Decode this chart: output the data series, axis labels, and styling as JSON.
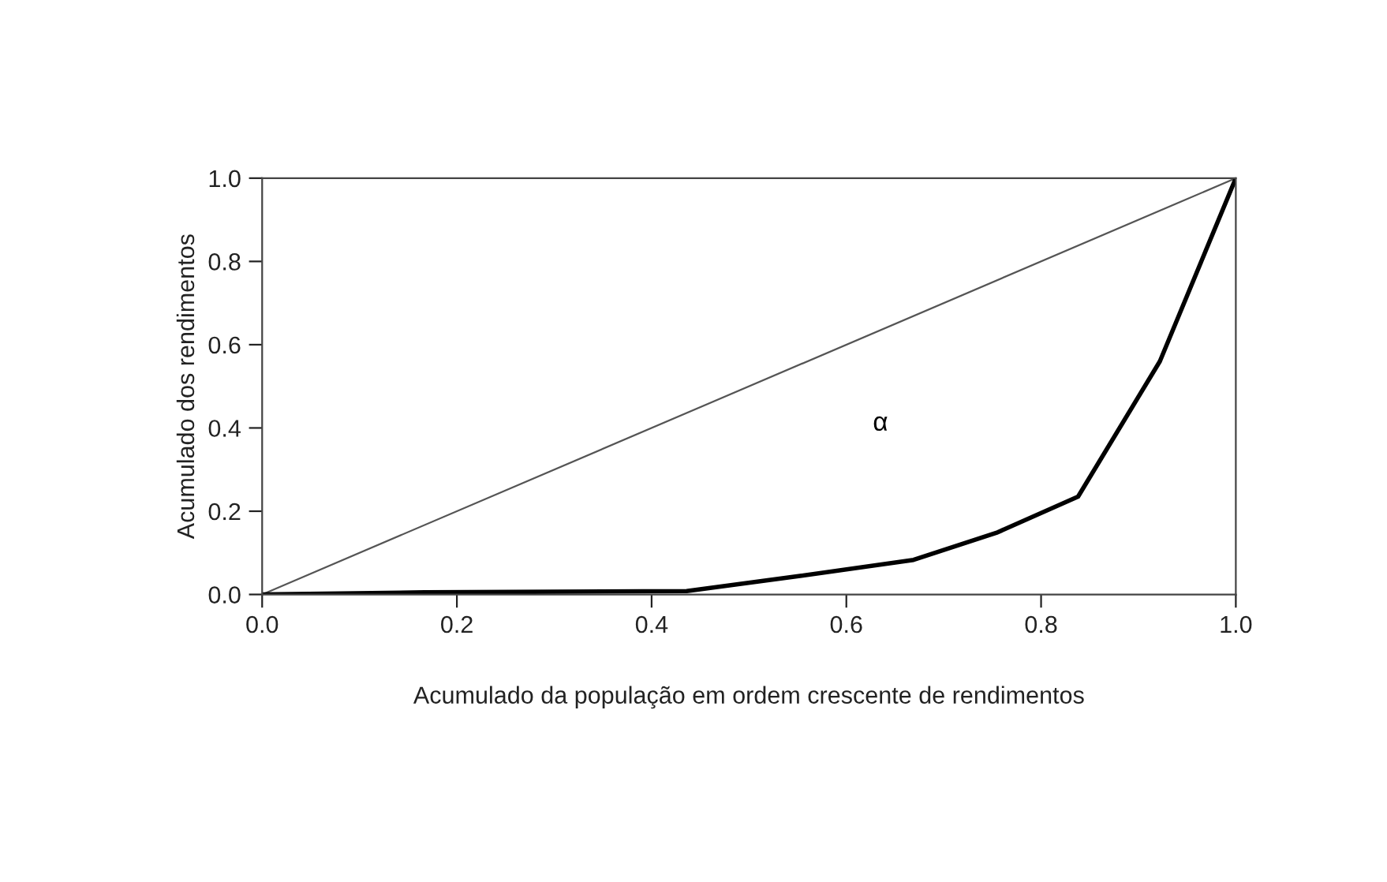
{
  "chart_data": {
    "type": "line",
    "xlabel": "Acumulado da população em ordem crescente de rendimentos",
    "ylabel": "Acumulado dos rendimentos",
    "series": [
      {
        "color": "#555555",
        "x": [
          0,
          1
        ],
        "values": [
          0,
          1
        ]
      },
      {
        "color": "#000000",
        "x": [
          0,
          0.167,
          0.436,
          0.554,
          0.669,
          0.754,
          0.838,
          0.922,
          1.0
        ],
        "values": [
          0,
          0.005,
          0.008,
          0.045,
          0.083,
          0.148,
          0.235,
          0.56,
          1.0
        ]
      }
    ],
    "annotations": [
      "α"
    ],
    "xlim": [
      0,
      1
    ],
    "ylim": [
      0,
      1
    ],
    "xticks": [
      {
        "value": 0,
        "label": "0.0"
      },
      0.2,
      0.4,
      0.6,
      0.8,
      {
        "value": 1,
        "label": "1.0"
      }
    ],
    "yticks": [
      {
        "value": 0,
        "label": "0.0"
      },
      0.2,
      0.4,
      0.6,
      0.8,
      {
        "value": 1,
        "label": "1.0"
      }
    ],
    "grid": false,
    "legend": false,
    "marker": "none",
    "line_style": "solid"
  }
}
